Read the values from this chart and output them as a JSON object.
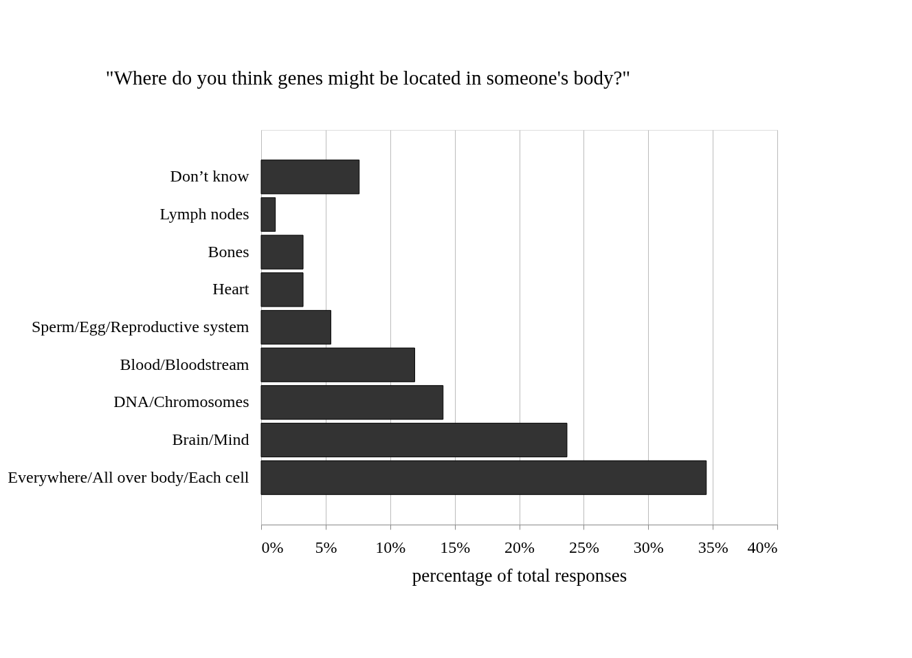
{
  "chart_data": {
    "type": "bar",
    "orientation": "horizontal",
    "title": "\"Where do you think genes might be located in someone's body?\"",
    "xlabel": "percentage of total responses",
    "categories": [
      "Don’t know",
      "Lymph nodes",
      "Bones",
      "Heart",
      "Sperm/Egg/Reproductive system",
      "Blood/Bloodstream",
      "DNA/Chromosomes",
      "Brain/Mind",
      "Everywhere/All over body/Each cell"
    ],
    "values": [
      7.6,
      1.1,
      3.25,
      3.25,
      5.4,
      11.9,
      14.1,
      23.7,
      34.5
    ],
    "color": "#333333",
    "xlim": [
      0,
      40
    ],
    "xticks": [
      {
        "value": 0,
        "label": "0%"
      },
      {
        "value": 5,
        "label": "5%"
      },
      {
        "value": 10,
        "label": "10%"
      },
      {
        "value": 15,
        "label": "15%"
      },
      {
        "value": 20,
        "label": "20%"
      },
      {
        "value": 25,
        "label": "25%"
      },
      {
        "value": 30,
        "label": "30%"
      },
      {
        "value": 35,
        "label": "35%"
      },
      {
        "value": 40,
        "label": "40%"
      }
    ],
    "grid": "x"
  }
}
